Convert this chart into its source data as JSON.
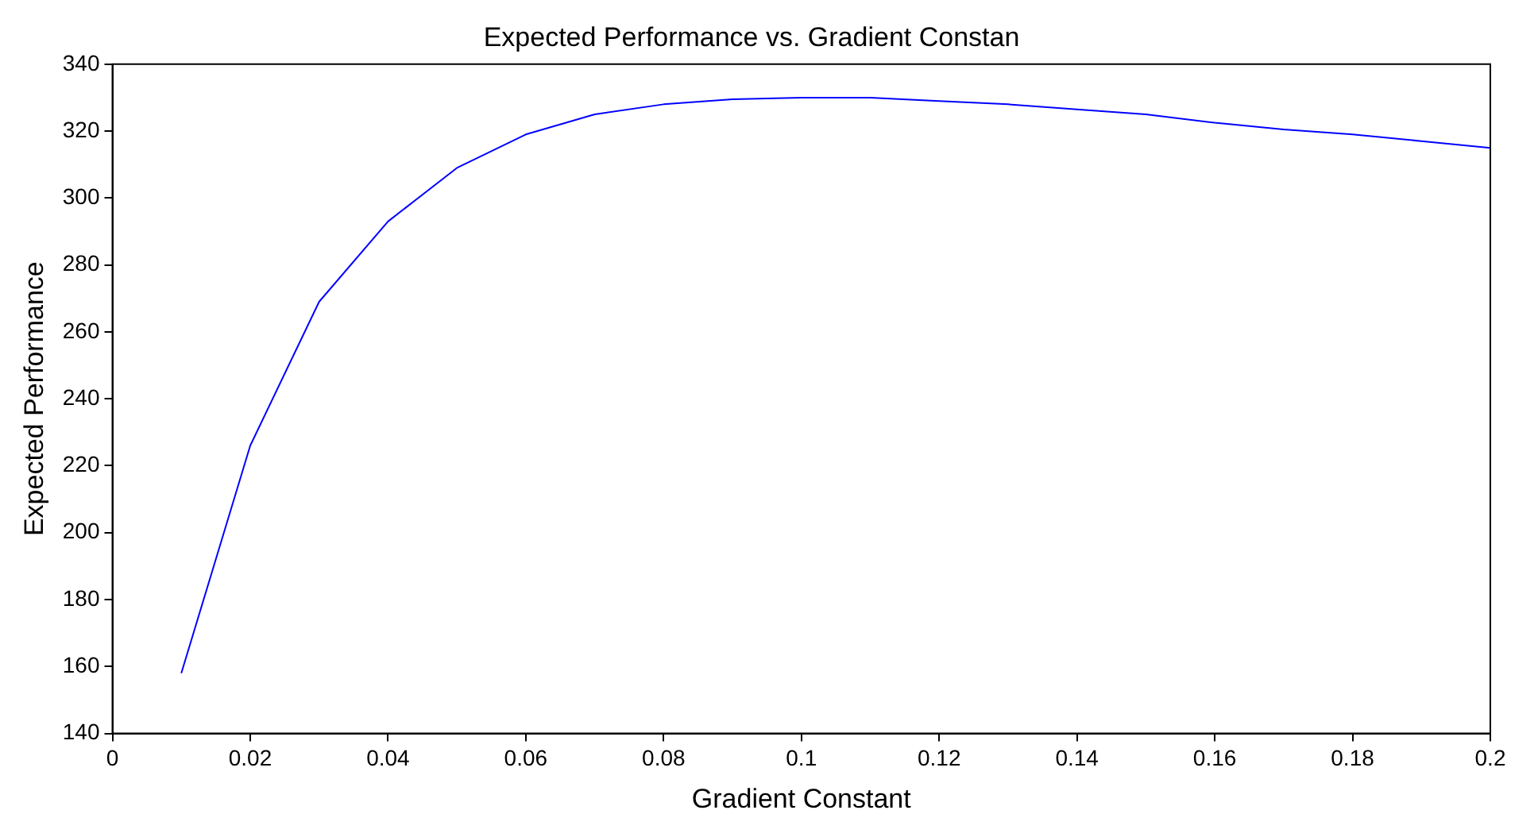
{
  "chart_data": {
    "type": "line",
    "title": "Expected Performance vs. Gradient Constan",
    "xlabel": "Gradient Constant",
    "ylabel": "Expected Performance",
    "x": [
      0.01,
      0.02,
      0.03,
      0.04,
      0.05,
      0.06,
      0.07,
      0.08,
      0.09,
      0.1,
      0.11,
      0.12,
      0.13,
      0.14,
      0.15,
      0.16,
      0.17,
      0.18,
      0.19,
      0.2
    ],
    "series": [
      {
        "color": "#0000ff",
        "values": [
          158,
          226,
          269,
          293,
          309,
          319,
          325,
          328,
          329.5,
          330,
          330,
          329,
          328,
          326.5,
          325,
          322.5,
          320.5,
          319,
          317,
          315
        ]
      }
    ],
    "xlim": [
      0,
      0.2
    ],
    "xticks": [
      0,
      0.02,
      0.04,
      0.06,
      0.08,
      0.1,
      0.12,
      0.14,
      0.16,
      0.18,
      0.2
    ],
    "ylim": [
      140,
      340
    ],
    "yticks": [
      140,
      160,
      180,
      200,
      220,
      240,
      260,
      280,
      300,
      320,
      340
    ],
    "grid": false,
    "legend": false,
    "marker": "none",
    "line_style": "solid"
  }
}
